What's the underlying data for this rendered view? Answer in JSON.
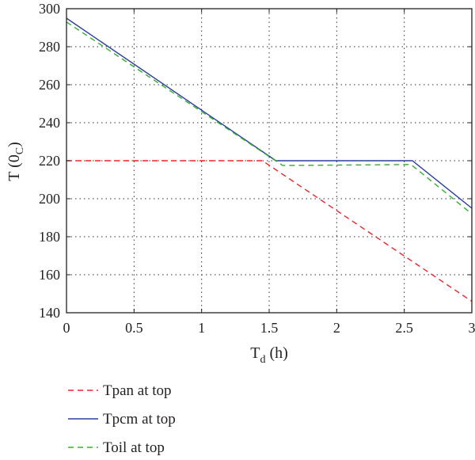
{
  "chart_data": {
    "type": "line",
    "title": "",
    "xlabel_main": "T",
    "xlabel_sub": "d",
    "xlabel_unit": " (h)",
    "ylabel_main": "T (0",
    "ylabel_sub": "C",
    "ylabel_close": ")",
    "xlim": [
      0,
      3
    ],
    "ylim": [
      140,
      300
    ],
    "xticks": [
      0,
      0.5,
      1,
      1.5,
      2,
      2.5,
      3
    ],
    "xtick_labels": [
      "0",
      "0.5",
      "1",
      "1.5",
      "2",
      "2.5",
      "3"
    ],
    "yticks": [
      140,
      160,
      180,
      200,
      220,
      240,
      260,
      280,
      300
    ],
    "ytick_labels": [
      "140",
      "160",
      "180",
      "200",
      "220",
      "240",
      "260",
      "280",
      "300"
    ],
    "grid": true,
    "legend_position": "below",
    "series": [
      {
        "name": "Tpan at top",
        "color": "#e8262a",
        "dash": "dashed",
        "points": [
          [
            0,
            220
          ],
          [
            1.45,
            220
          ],
          [
            3,
            146
          ]
        ]
      },
      {
        "name": "Tpcm at top",
        "color": "#2c3e9e",
        "dash": "solid",
        "points": [
          [
            0,
            295
          ],
          [
            1.55,
            220
          ],
          [
            2.56,
            220
          ],
          [
            3,
            195
          ]
        ]
      },
      {
        "name": "Toil at top",
        "color": "#33b02f",
        "dash": "dashed",
        "points": [
          [
            0,
            293
          ],
          [
            1.6,
            217.5
          ],
          [
            2.55,
            218
          ],
          [
            3,
            192
          ]
        ]
      }
    ]
  }
}
